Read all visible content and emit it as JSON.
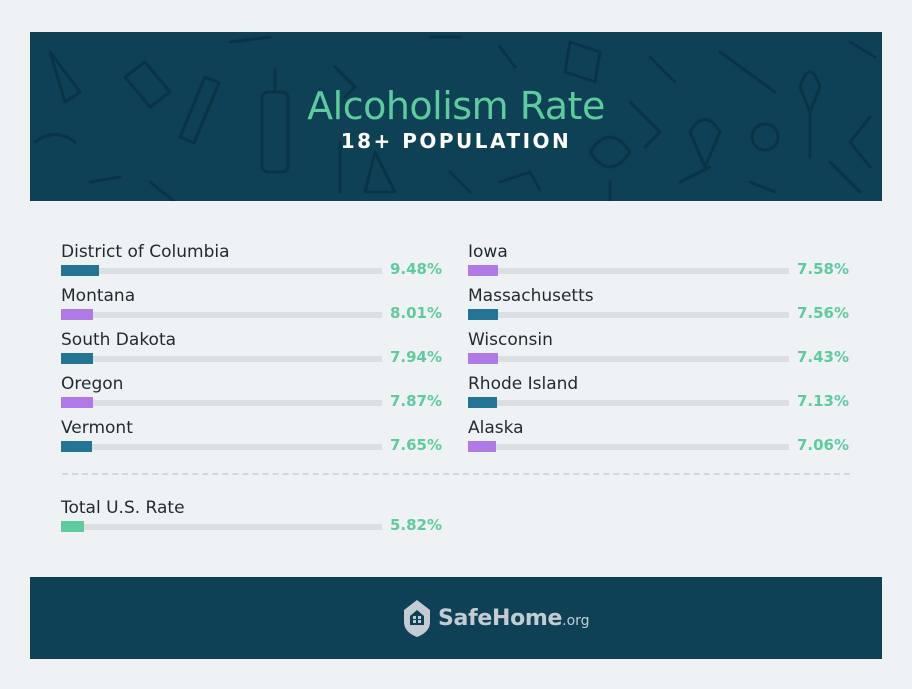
{
  "header": {
    "title": "Alcoholism Rate",
    "subtitle": "18+ POPULATION"
  },
  "colors": {
    "teal": "#237495",
    "purple": "#b07ae6",
    "green": "#5ecb9e",
    "navy": "#0e4155"
  },
  "chart_data": {
    "type": "bar",
    "title": "Alcoholism Rate",
    "subtitle": "18+ POPULATION",
    "unit": "%",
    "scale_max": 80,
    "left_column": [
      {
        "label": "District of Columbia",
        "value": 9.48,
        "value_label": "9.48%",
        "color": "teal"
      },
      {
        "label": "Montana",
        "value": 8.01,
        "value_label": "8.01%",
        "color": "purple"
      },
      {
        "label": "South Dakota",
        "value": 7.94,
        "value_label": "7.94%",
        "color": "teal"
      },
      {
        "label": "Oregon",
        "value": 7.87,
        "value_label": "7.87%",
        "color": "purple"
      },
      {
        "label": "Vermont",
        "value": 7.65,
        "value_label": "7.65%",
        "color": "teal"
      }
    ],
    "right_column": [
      {
        "label": "Iowa",
        "value": 7.58,
        "value_label": "7.58%",
        "color": "purple"
      },
      {
        "label": "Massachusetts",
        "value": 7.56,
        "value_label": "7.56%",
        "color": "teal"
      },
      {
        "label": "Wisconsin",
        "value": 7.43,
        "value_label": "7.43%",
        "color": "purple"
      },
      {
        "label": "Rhode Island",
        "value": 7.13,
        "value_label": "7.13%",
        "color": "teal"
      },
      {
        "label": "Alaska",
        "value": 7.06,
        "value_label": "7.06%",
        "color": "purple"
      }
    ],
    "total": {
      "label": "Total U.S. Rate",
      "value": 5.82,
      "value_label": "5.82%",
      "color": "green"
    }
  },
  "footer": {
    "brand_name": "SafeHome",
    "brand_tld": ".org",
    "logo_icon": "house-shield-icon"
  }
}
